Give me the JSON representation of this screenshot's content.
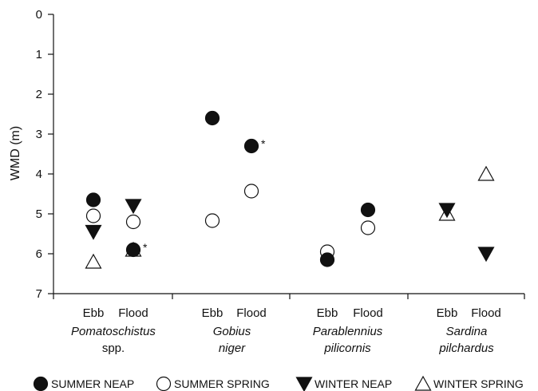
{
  "chart_data": {
    "type": "scatter",
    "ylabel": "WMD (m)",
    "ylim": [
      0,
      7
    ],
    "y_inverted": true,
    "yticks": [
      "0",
      "1",
      "2",
      "3",
      "4",
      "5",
      "6",
      "7"
    ],
    "tide_labels": [
      "Ebb",
      "Flood",
      "Ebb",
      "Flood",
      "Ebb",
      "Flood",
      "Ebb",
      "Flood"
    ],
    "groups": [
      {
        "lines": [
          "Pomatoschistus",
          "spp."
        ],
        "italic": [
          true,
          false
        ]
      },
      {
        "lines": [
          "Gobius",
          "niger"
        ],
        "italic": [
          true,
          true
        ]
      },
      {
        "lines": [
          "Parablennius",
          "pilicornis"
        ],
        "italic": [
          true,
          true
        ]
      },
      {
        "lines": [
          "Sardina",
          "pilchardus"
        ],
        "italic": [
          true,
          true
        ]
      }
    ],
    "series": [
      {
        "name": "SUMMER NEAP",
        "marker": "filled-circle",
        "values": [
          4.65,
          5.9,
          2.6,
          3.3,
          6.15,
          4.9,
          null,
          null
        ]
      },
      {
        "name": "SUMMER SPRING",
        "marker": "open-circle",
        "values": [
          5.05,
          5.2,
          5.17,
          4.43,
          5.95,
          5.35,
          null,
          null
        ]
      },
      {
        "name": "WINTER NEAP",
        "marker": "filled-triangle-down",
        "values": [
          5.45,
          4.8,
          null,
          null,
          null,
          null,
          4.9,
          6.0
        ]
      },
      {
        "name": "WINTER SPRING",
        "marker": "open-triangle-up",
        "values": [
          6.2,
          5.9,
          null,
          null,
          null,
          null,
          5.0,
          4.0
        ]
      }
    ],
    "annotations": [
      {
        "text": "*",
        "series": "SUMMER NEAP",
        "index": 1
      },
      {
        "text": "*",
        "series": "SUMMER NEAP",
        "index": 3
      }
    ],
    "legend_position": "bottom",
    "grid": false
  }
}
